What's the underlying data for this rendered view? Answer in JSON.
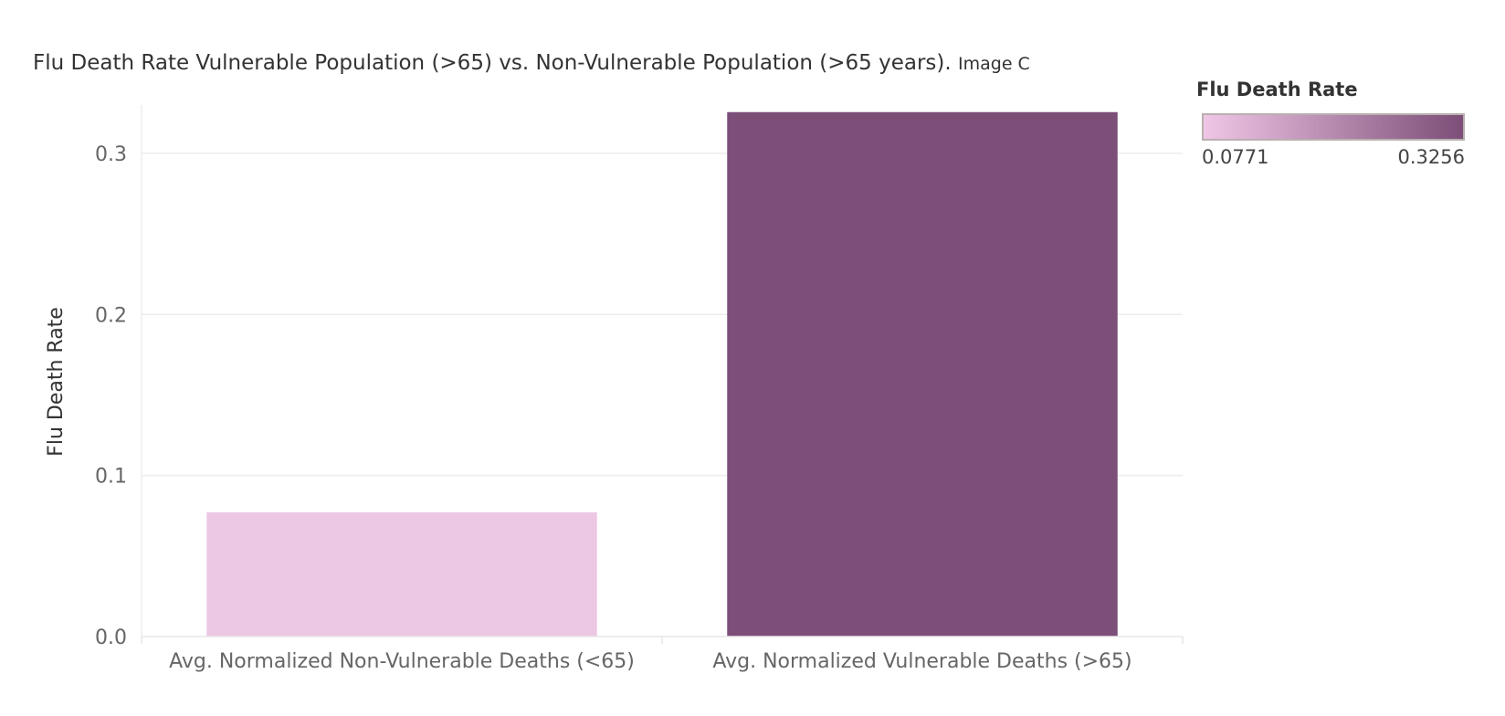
{
  "chart_data": {
    "type": "bar",
    "title": "Flu Death Rate Vulnerable Population (>65) vs. Non-Vulnerable Population (>65 years).",
    "title_suffix": "Image C",
    "ylabel": "Flu Death Rate",
    "xlabel": "",
    "ylim": [
      0,
      0.33
    ],
    "yticks": [
      0.0,
      0.1,
      0.2,
      0.3
    ],
    "ytick_labels": [
      "0.0",
      "0.1",
      "0.2",
      "0.3"
    ],
    "grid": true,
    "categories": [
      "Avg. Normalized Non-Vulnerable Deaths (<65)",
      "Avg. Normalized Vulnerable Deaths (>65)"
    ],
    "values": [
      0.0771,
      0.3256
    ],
    "bar_colors": [
      "#ecc8e4",
      "#7c4e78"
    ],
    "legend": {
      "title": "Flu Death Rate",
      "type": "color-gradient",
      "placement": "top-right",
      "min_label": "0.0771",
      "max_label": "0.3256",
      "min_color": "#f0c6e6",
      "max_color": "#7c4e78"
    }
  }
}
